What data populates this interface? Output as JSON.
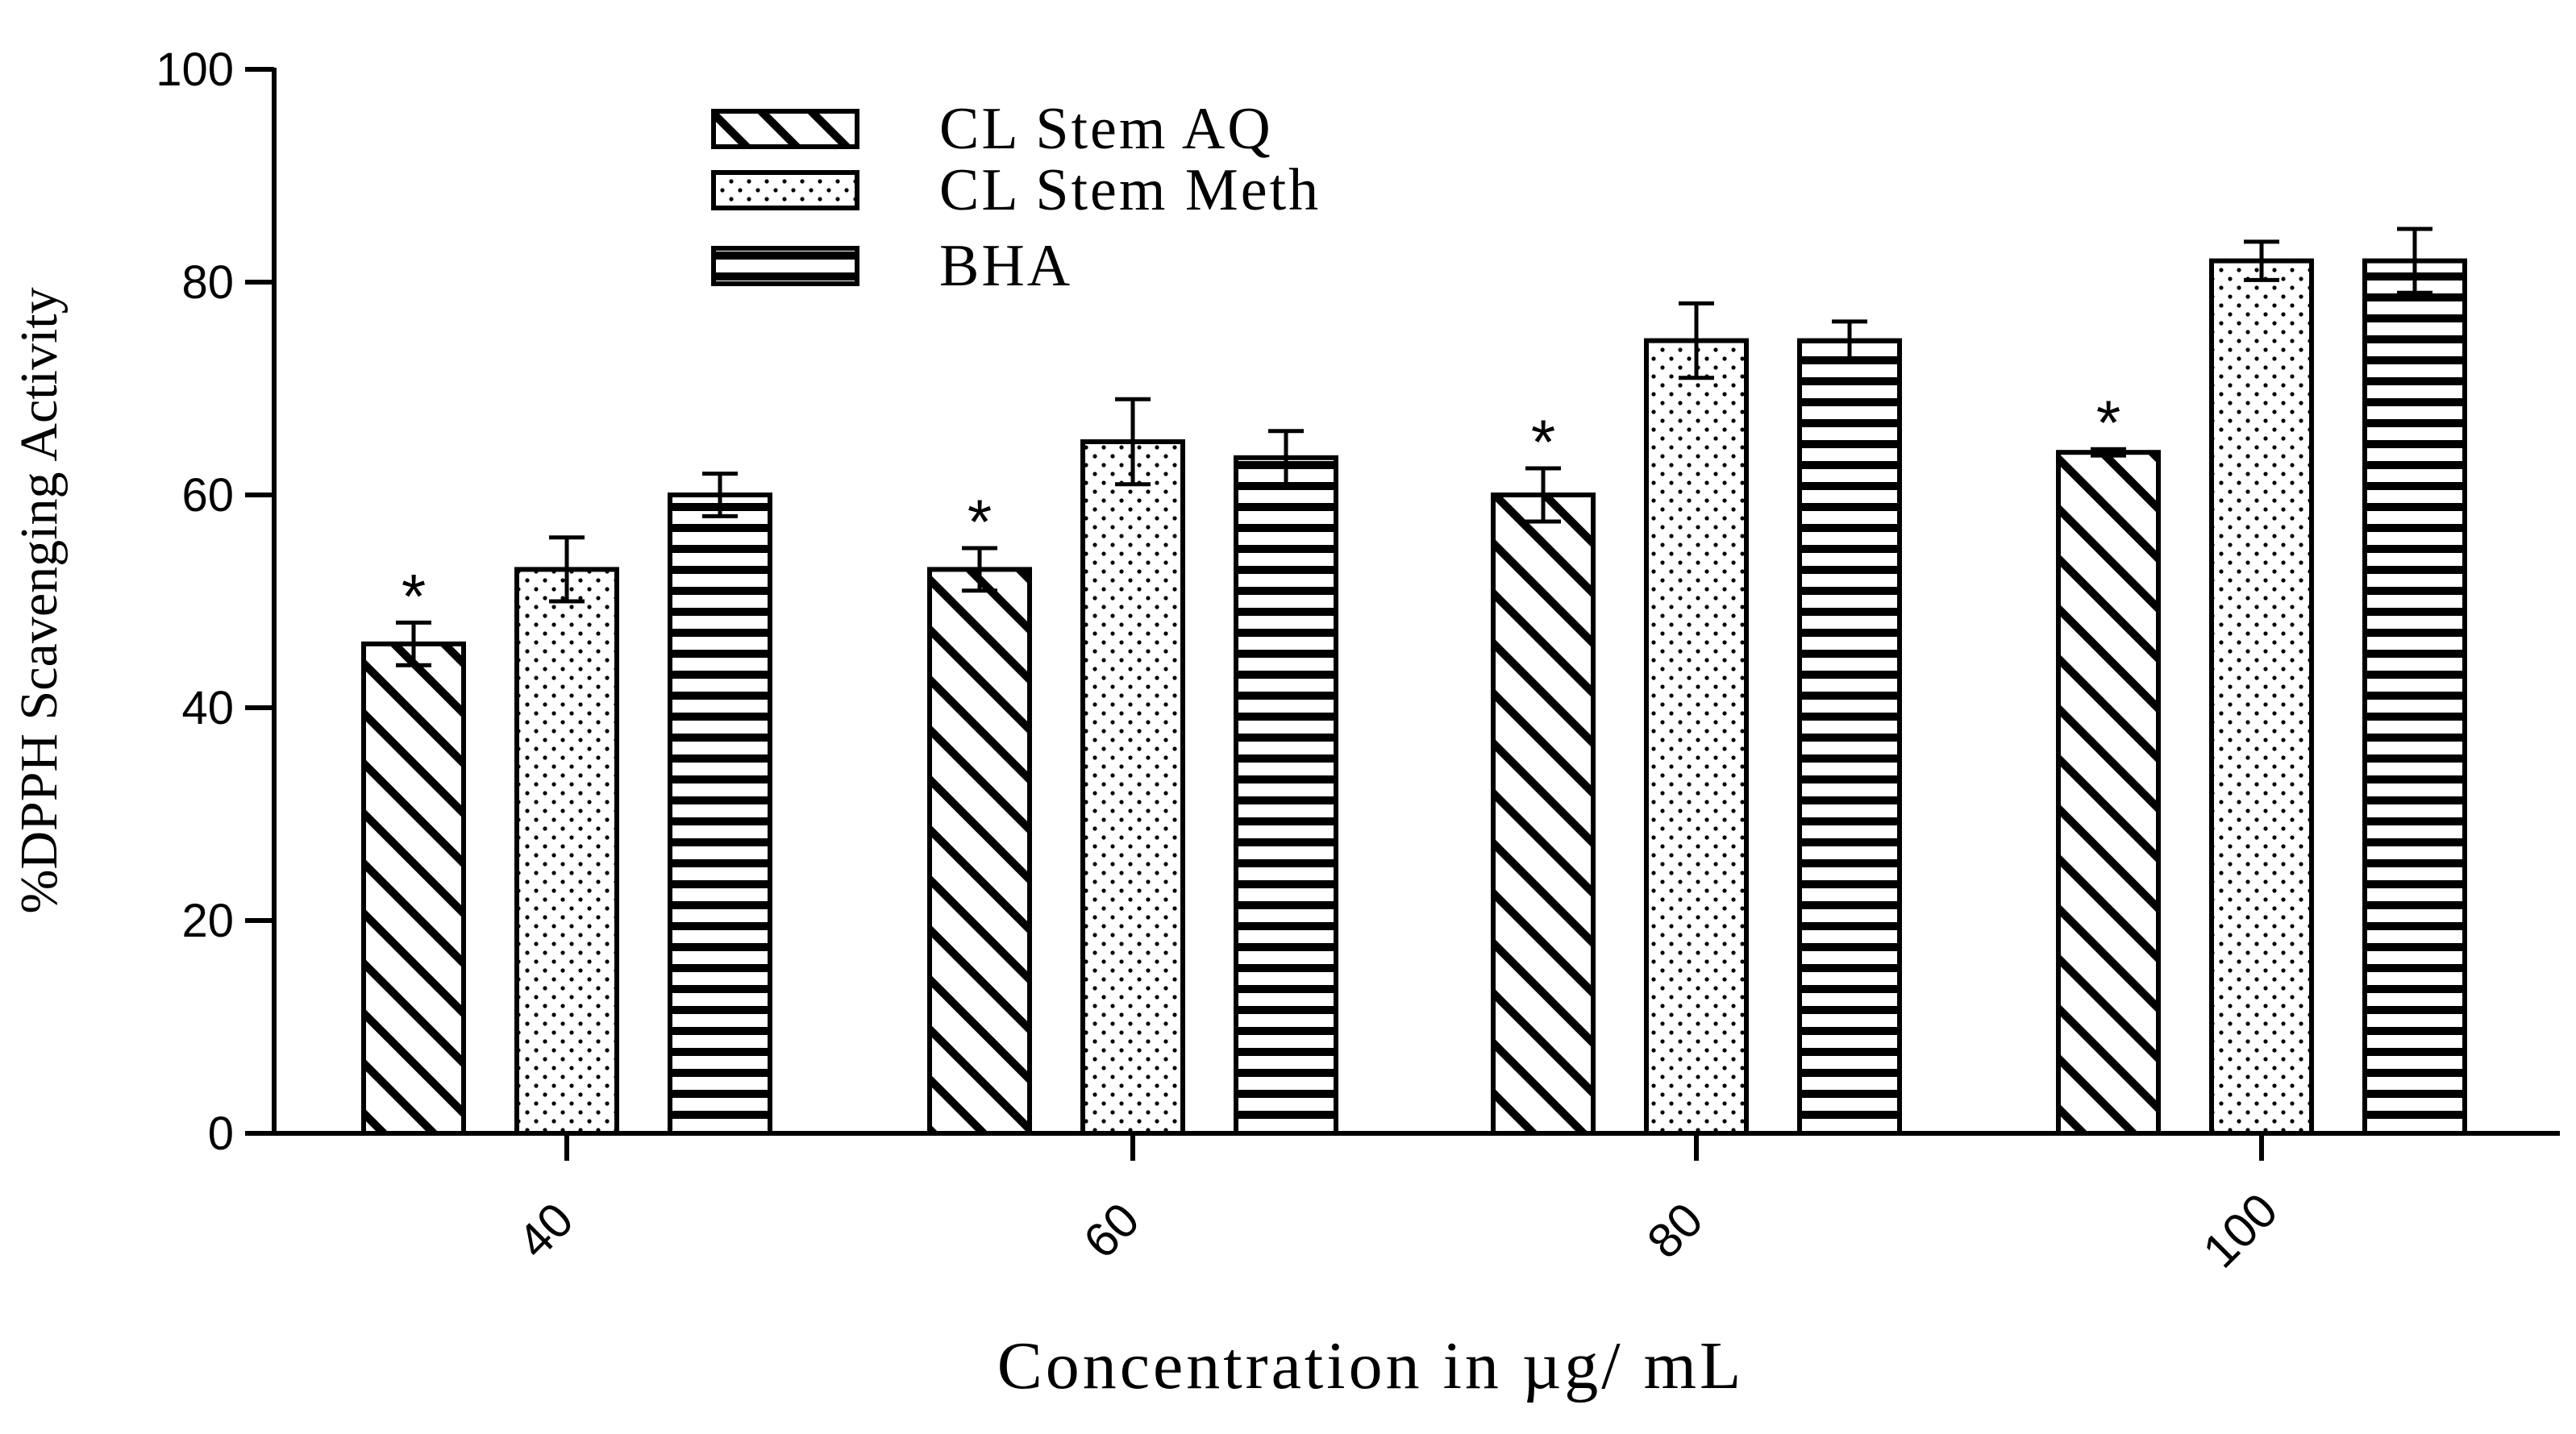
{
  "chart_data": {
    "type": "bar",
    "title": "",
    "xlabel": "Concentration in µg/ mL",
    "ylabel": "%DPPH Scavenging Activity",
    "ylim": [
      0,
      100
    ],
    "yticks": [
      "0",
      "20",
      "40",
      "60",
      "80",
      "100"
    ],
    "categories": [
      "40",
      "60",
      "80",
      "100"
    ],
    "grid": false,
    "legend_position": "top-left",
    "significance_marker": "*",
    "series": [
      {
        "name": "CL Stem AQ",
        "pattern": "diagonal-hatch",
        "values": [
          46,
          53,
          60,
          64
        ],
        "errors": [
          2,
          2,
          2.5,
          0.3
        ],
        "significant": [
          true,
          true,
          true,
          true
        ]
      },
      {
        "name": "CL Stem Meth",
        "pattern": "dots",
        "values": [
          53,
          65,
          74.5,
          82
        ],
        "errors": [
          3,
          4,
          3.5,
          1.8
        ],
        "significant": [
          false,
          false,
          false,
          false
        ]
      },
      {
        "name": "BHA",
        "pattern": "horizontal-lines",
        "values": [
          60,
          63.5,
          74.5,
          82
        ],
        "errors": [
          2,
          2.5,
          1.8,
          3
        ],
        "significant": [
          false,
          false,
          false,
          false
        ]
      }
    ]
  },
  "colors": {
    "bar_fill": "#ffffff",
    "ink": "#000000"
  }
}
